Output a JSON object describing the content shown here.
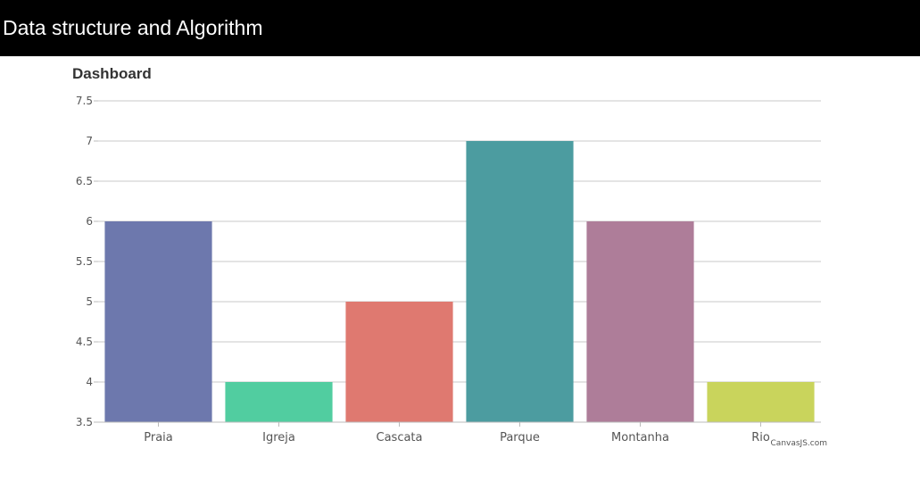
{
  "header": {
    "title": "Data structure and Algorithm"
  },
  "credit": "CanvasJS.com",
  "chart_data": {
    "type": "bar",
    "title": "Dashboard",
    "xlabel": "",
    "ylabel": "",
    "categories": [
      "Praia",
      "Igreja",
      "Cascata",
      "Parque",
      "Montanha",
      "Rio"
    ],
    "values": [
      6,
      4,
      5,
      7,
      6,
      4
    ],
    "colors": [
      "#6d78ad",
      "#51cda0",
      "#df7970",
      "#4c9ca0",
      "#ae7d99",
      "#c9d45c"
    ],
    "ylim": [
      3.5,
      7.5
    ],
    "yticks": [
      "3.5",
      "4",
      "4.5",
      "5",
      "5.5",
      "6",
      "6.5",
      "7",
      "7.5"
    ],
    "grid": true,
    "legend": "none"
  }
}
